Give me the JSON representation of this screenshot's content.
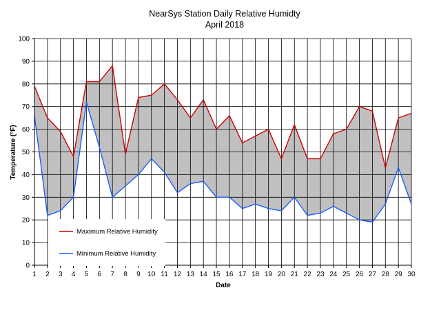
{
  "chart_data": {
    "type": "area",
    "title": "NearSys Station Daily Relative Humidty",
    "subtitle": "April 2018",
    "xlabel": "Date",
    "ylabel": "Temperature (°F)",
    "xlim": [
      1,
      30
    ],
    "ylim": [
      0,
      100
    ],
    "y_ticks": [
      0,
      10,
      20,
      30,
      40,
      50,
      60,
      70,
      80,
      90,
      100
    ],
    "x": [
      1,
      2,
      3,
      4,
      5,
      6,
      7,
      8,
      9,
      10,
      11,
      12,
      13,
      14,
      15,
      16,
      17,
      18,
      19,
      20,
      21,
      22,
      23,
      24,
      25,
      26,
      27,
      28,
      29,
      30
    ],
    "grid": true,
    "legend_position": "bottom-left",
    "fill_between_series": true,
    "series": [
      {
        "name": "Maximum Relative Humidity",
        "color": "#cc0000",
        "values": [
          79,
          65,
          59,
          48,
          81,
          81,
          88,
          49,
          74,
          75,
          80,
          73,
          65,
          73,
          60,
          66,
          54,
          57,
          60,
          47,
          62,
          47,
          47,
          58,
          60,
          70,
          68,
          43,
          65,
          67
        ]
      },
      {
        "name": "Minimum Relative Humidity",
        "color": "#1a5cff",
        "values": [
          66,
          22,
          24,
          30,
          72,
          52,
          30,
          35,
          40,
          47,
          41,
          32,
          36,
          37,
          30,
          30,
          25,
          27,
          25,
          24,
          30,
          22,
          23,
          26,
          23,
          20,
          19,
          27,
          43,
          27
        ]
      }
    ],
    "fill_color": "#c0c0c0",
    "plot_background": "#ffffff"
  }
}
